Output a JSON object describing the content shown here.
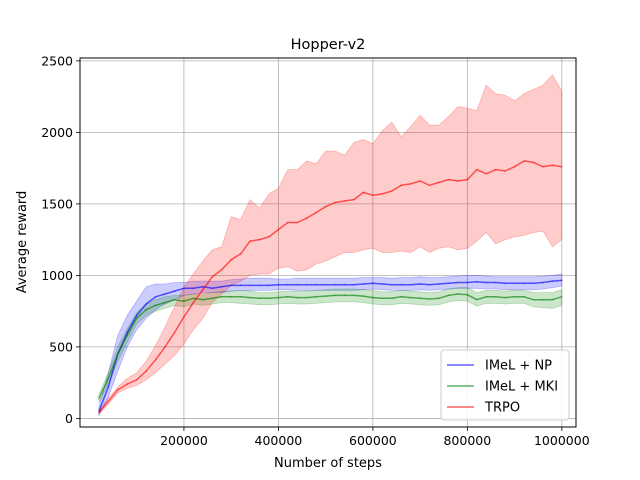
{
  "chart_data": {
    "type": "line",
    "title": "Hopper-v2",
    "xlabel": "Number of steps",
    "ylabel": "Average reward",
    "xlim": [
      -20000,
      1030000
    ],
    "ylim": [
      -60,
      2520
    ],
    "xticks": [
      200000,
      400000,
      600000,
      800000,
      1000000
    ],
    "xtick_labels": [
      "200000",
      "400000",
      "600000",
      "800000",
      "1000000"
    ],
    "yticks": [
      0,
      500,
      1000,
      1500,
      2000,
      2500
    ],
    "ytick_labels": [
      "0",
      "500",
      "1000",
      "1500",
      "2000",
      "2500"
    ],
    "grid": true,
    "legend_position": "bottom-right",
    "x": [
      20000,
      40000,
      60000,
      80000,
      100000,
      120000,
      140000,
      160000,
      180000,
      200000,
      220000,
      240000,
      260000,
      280000,
      300000,
      320000,
      340000,
      360000,
      380000,
      400000,
      420000,
      440000,
      460000,
      480000,
      500000,
      520000,
      540000,
      560000,
      580000,
      600000,
      620000,
      640000,
      660000,
      680000,
      700000,
      720000,
      740000,
      760000,
      780000,
      800000,
      820000,
      840000,
      860000,
      880000,
      900000,
      920000,
      940000,
      960000,
      980000,
      1000000
    ],
    "series": [
      {
        "name": "IMeL + NP",
        "color": "#0000ff",
        "values": [
          50,
          220,
          450,
          600,
          720,
          800,
          850,
          870,
          890,
          910,
          910,
          920,
          910,
          920,
          930,
          930,
          930,
          930,
          930,
          935,
          935,
          935,
          935,
          935,
          935,
          935,
          935,
          935,
          940,
          945,
          940,
          935,
          935,
          935,
          940,
          935,
          940,
          945,
          950,
          950,
          955,
          950,
          950,
          945,
          945,
          945,
          945,
          950,
          960,
          965
        ],
        "upper": [
          80,
          320,
          580,
          720,
          820,
          920,
          940,
          940,
          950,
          950,
          960,
          960,
          960,
          960,
          970,
          975,
          980,
          980,
          980,
          975,
          975,
          980,
          980,
          980,
          980,
          980,
          980,
          980,
          985,
          985,
          985,
          980,
          985,
          985,
          990,
          985,
          985,
          990,
          995,
          1000,
          1000,
          995,
          990,
          990,
          990,
          990,
          990,
          995,
          1000,
          1010
        ],
        "lower": [
          20,
          150,
          330,
          500,
          620,
          700,
          760,
          800,
          830,
          860,
          870,
          880,
          880,
          880,
          890,
          895,
          895,
          895,
          895,
          900,
          900,
          895,
          895,
          895,
          895,
          895,
          895,
          895,
          900,
          905,
          900,
          895,
          895,
          895,
          900,
          895,
          900,
          905,
          910,
          910,
          910,
          905,
          905,
          900,
          900,
          900,
          900,
          905,
          915,
          925
        ]
      },
      {
        "name": "IMeL + MKI",
        "color": "#008000",
        "values": [
          140,
          280,
          450,
          580,
          700,
          760,
          790,
          810,
          830,
          820,
          840,
          830,
          840,
          850,
          850,
          850,
          845,
          840,
          840,
          845,
          850,
          845,
          845,
          850,
          855,
          860,
          860,
          860,
          855,
          845,
          840,
          840,
          850,
          845,
          840,
          835,
          840,
          860,
          870,
          865,
          830,
          850,
          850,
          845,
          850,
          850,
          830,
          830,
          830,
          850
        ],
        "upper": [
          170,
          320,
          500,
          630,
          740,
          800,
          830,
          850,
          860,
          860,
          870,
          870,
          880,
          890,
          890,
          895,
          890,
          880,
          880,
          885,
          890,
          890,
          890,
          895,
          900,
          905,
          905,
          905,
          900,
          895,
          885,
          885,
          895,
          890,
          885,
          880,
          885,
          905,
          915,
          915,
          880,
          895,
          895,
          890,
          895,
          895,
          880,
          880,
          880,
          900
        ],
        "lower": [
          110,
          240,
          400,
          530,
          660,
          720,
          750,
          770,
          790,
          780,
          800,
          790,
          800,
          810,
          810,
          805,
          800,
          795,
          795,
          800,
          805,
          800,
          800,
          805,
          810,
          815,
          815,
          815,
          810,
          800,
          795,
          795,
          805,
          800,
          795,
          790,
          795,
          815,
          825,
          820,
          785,
          805,
          805,
          800,
          805,
          805,
          780,
          775,
          770,
          790
        ]
      },
      {
        "name": "TRPO",
        "color": "#ff0000",
        "values": [
          40,
          120,
          200,
          240,
          270,
          330,
          410,
          500,
          600,
          710,
          810,
          900,
          990,
          1040,
          1110,
          1150,
          1240,
          1250,
          1270,
          1320,
          1370,
          1370,
          1400,
          1440,
          1480,
          1510,
          1520,
          1530,
          1580,
          1560,
          1570,
          1590,
          1630,
          1640,
          1660,
          1630,
          1650,
          1670,
          1660,
          1670,
          1740,
          1710,
          1740,
          1730,
          1760,
          1800,
          1790,
          1760,
          1770,
          1760
        ],
        "upper": [
          55,
          140,
          220,
          280,
          320,
          400,
          510,
          640,
          780,
          920,
          1010,
          1100,
          1180,
          1200,
          1410,
          1390,
          1530,
          1470,
          1570,
          1610,
          1740,
          1740,
          1800,
          1780,
          1870,
          1870,
          1840,
          1930,
          1950,
          1920,
          2010,
          2070,
          1970,
          2040,
          2120,
          2050,
          2050,
          2110,
          2180,
          2170,
          2150,
          2330,
          2270,
          2260,
          2220,
          2270,
          2300,
          2330,
          2400,
          2290
        ],
        "lower": [
          30,
          100,
          180,
          210,
          230,
          270,
          320,
          380,
          440,
          520,
          620,
          700,
          810,
          870,
          930,
          960,
          1000,
          1010,
          1010,
          1050,
          1060,
          1030,
          1040,
          1080,
          1100,
          1130,
          1160,
          1160,
          1180,
          1190,
          1160,
          1160,
          1170,
          1160,
          1200,
          1160,
          1190,
          1200,
          1180,
          1190,
          1240,
          1300,
          1220,
          1250,
          1270,
          1280,
          1300,
          1310,
          1200,
          1250
        ]
      }
    ]
  }
}
